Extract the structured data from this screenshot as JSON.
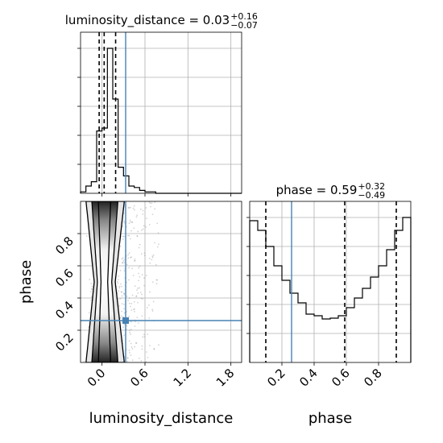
{
  "colors": {
    "truth": "#4682b4",
    "grid": "#b0b0b0",
    "samples": "#808080"
  },
  "chart_data": {
    "type": "corner",
    "parameters": [
      "luminosity_distance",
      "phase"
    ],
    "truths": {
      "luminosity_distance": 0.33,
      "phase": 0.26
    },
    "panels": [
      {
        "type": "histogram",
        "parameter": "luminosity_distance",
        "title": {
          "text": "luminosity_distance = 0.03",
          "sup": "+0.16",
          "sub": "−0.07"
        },
        "xlim": [
          -0.3,
          1.95
        ],
        "quantiles": [
          -0.04,
          0.03,
          0.19
        ],
        "bins": [
          -0.3,
          -0.225,
          -0.15,
          -0.075,
          0.0,
          0.075,
          0.15,
          0.225,
          0.3,
          0.375,
          0.45,
          0.525,
          0.6,
          0.675,
          0.75,
          0.825,
          0.9,
          0.975,
          1.05,
          1.125,
          1.2,
          1.275,
          1.35,
          1.425,
          1.5,
          1.575,
          1.65,
          1.725,
          1.8,
          1.875,
          1.95
        ],
        "counts": [
          0.01,
          0.05,
          0.08,
          0.43,
          0.45,
          1.0,
          0.65,
          0.18,
          0.12,
          0.05,
          0.04,
          0.02,
          0.01,
          0.01,
          0.0,
          0.0,
          0.0,
          0.0,
          0.0,
          0.0,
          0.0,
          0.0,
          0.0,
          0.0,
          0.0,
          0.0,
          0.0,
          0.0,
          0.0,
          0.0
        ]
      },
      {
        "type": "histogram",
        "parameter": "phase",
        "title": {
          "text": "phase = 0.59",
          "sup": "+0.32",
          "sub": "−0.49"
        },
        "xlim": [
          0.0,
          1.0
        ],
        "quantiles": [
          0.1,
          0.59,
          0.91
        ],
        "bins": [
          0.0,
          0.05,
          0.1,
          0.15,
          0.2,
          0.25,
          0.3,
          0.35,
          0.4,
          0.45,
          0.5,
          0.55,
          0.6,
          0.65,
          0.7,
          0.75,
          0.8,
          0.85,
          0.9,
          0.95,
          1.0
        ],
        "counts": [
          0.88,
          0.82,
          0.72,
          0.6,
          0.51,
          0.43,
          0.37,
          0.3,
          0.29,
          0.27,
          0.275,
          0.29,
          0.34,
          0.4,
          0.46,
          0.53,
          0.6,
          0.7,
          0.82,
          0.9
        ]
      },
      {
        "type": "density2d",
        "x": "luminosity_distance",
        "y": "phase",
        "xlim": [
          -0.3,
          1.95
        ],
        "ylim": [
          0.0,
          1.0
        ],
        "xticks": [
          0.0,
          0.6,
          1.2,
          1.8
        ],
        "xtick_labels": [
          "0.0",
          "0.6",
          "1.2",
          "1.8"
        ],
        "yticks": [
          0.2,
          0.4,
          0.6,
          0.8
        ],
        "ytick_labels": [
          "0.2",
          "0.4",
          "0.6",
          "0.8"
        ],
        "xlabel": "luminosity_distance",
        "ylabel": "phase"
      }
    ],
    "phase_xticks": [
      0.2,
      0.4,
      0.6,
      0.8
    ],
    "phase_xtick_labels": [
      "0.2",
      "0.4",
      "0.6",
      "0.8"
    ],
    "phase_xlabel": "phase"
  }
}
